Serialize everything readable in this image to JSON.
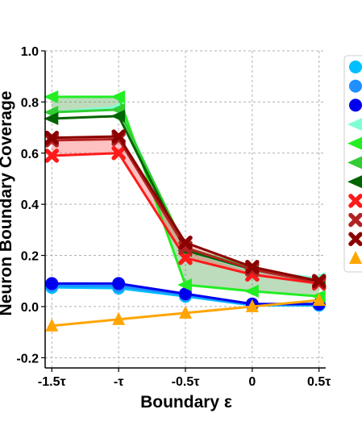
{
  "chart_data": {
    "type": "line",
    "title": "",
    "xlabel": "Boundary ε",
    "ylabel": "Neuron Boundary Coverage",
    "x": [
      -1.5,
      -1.0,
      -0.5,
      0.0,
      0.5
    ],
    "x_tick_labels": [
      "-1.5τ",
      "-τ",
      "-0.5τ",
      "0",
      "0.5τ"
    ],
    "xlim": [
      -1.55,
      0.55
    ],
    "ylim": [
      -0.24,
      1.0
    ],
    "y_ticks": [
      -0.2,
      0.0,
      0.2,
      0.4,
      0.6,
      0.8,
      1.0
    ],
    "y_tick_labels": [
      "-0.2",
      "0.0",
      "0.2",
      "0.4",
      "0.6",
      "0.8",
      "1.0"
    ],
    "grid": true,
    "legend_placement": "right",
    "series": [
      {
        "color": "#00bfff",
        "marker": "circle",
        "values": [
          0.075,
          0.072,
          0.04,
          0.005,
          0.005
        ]
      },
      {
        "color": "#1e90ff",
        "marker": "circle",
        "values": [
          0.082,
          0.08,
          0.045,
          0.008,
          0.008
        ]
      },
      {
        "color": "#0000ee",
        "marker": "circle",
        "values": [
          0.09,
          0.09,
          0.05,
          0.01,
          0.01
        ]
      },
      {
        "color": "#7fffd4",
        "marker": "triangle-left",
        "values": [
          0.76,
          0.78,
          0.22,
          0.14,
          0.11
        ]
      },
      {
        "color": "#22ee22",
        "marker": "triangle-left",
        "values": [
          0.82,
          0.82,
          0.085,
          0.06,
          0.04
        ]
      },
      {
        "color": "#32cd32",
        "marker": "triangle-left",
        "values": [
          0.76,
          0.77,
          0.23,
          0.15,
          0.1
        ]
      },
      {
        "color": "#006400",
        "marker": "triangle-left",
        "values": [
          0.735,
          0.745,
          0.22,
          0.145,
          0.095
        ]
      },
      {
        "color": "#ff1a1a",
        "marker": "x",
        "values": [
          0.59,
          0.6,
          0.19,
          0.125,
          0.09
        ]
      },
      {
        "color": "#b22222",
        "marker": "x",
        "values": [
          0.65,
          0.655,
          0.23,
          0.145,
          0.095
        ]
      },
      {
        "color": "#8b0000",
        "marker": "x",
        "values": [
          0.66,
          0.665,
          0.25,
          0.155,
          0.1
        ]
      },
      {
        "color": "#ffa500",
        "marker": "triangle-up",
        "values": [
          -0.075,
          -0.05,
          -0.025,
          0.0,
          0.025
        ]
      }
    ],
    "bands": [
      {
        "color": "#1e90ff",
        "lower_series": 0,
        "upper_series": 2
      },
      {
        "color": "#228b22",
        "lower_series": 4,
        "upper_series": 3
      },
      {
        "color": "#ff3333",
        "lower_series": 7,
        "upper_series": 9
      }
    ]
  }
}
